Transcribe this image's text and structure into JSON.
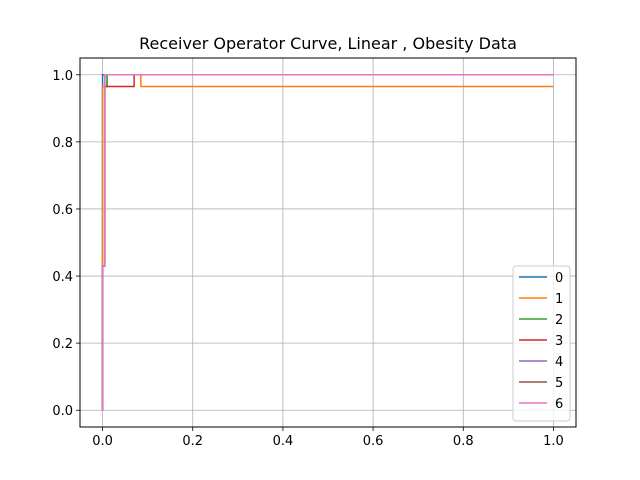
{
  "chart_data": {
    "type": "line",
    "title": "Receiver Operator Curve, Linear , Obesity Data",
    "xlabel": "",
    "ylabel": "",
    "xlim": [
      -0.05,
      1.05
    ],
    "ylim": [
      -0.05,
      1.05
    ],
    "xticks": [
      "0.0",
      "0.2",
      "0.4",
      "0.6",
      "0.8",
      "1.0"
    ],
    "yticks": [
      "0.0",
      "0.2",
      "0.4",
      "0.6",
      "0.8",
      "1.0"
    ],
    "grid": true,
    "legend_position": "lower-right",
    "series": [
      {
        "name": "0",
        "color": "#1f77b4",
        "x": [
          0,
          0,
          0,
          1
        ],
        "y": [
          0,
          0.43,
          1.0,
          1.0
        ]
      },
      {
        "name": "1",
        "color": "#ff7f0e",
        "x": [
          0,
          0,
          0,
          0.01,
          0.01,
          0.085,
          0.085,
          1
        ],
        "y": [
          0,
          0.43,
          0.965,
          0.965,
          1.0,
          1.0,
          0.965,
          0.965
        ]
      },
      {
        "name": "2",
        "color": "#2ca02c",
        "x": [
          0,
          0,
          0.005,
          0.005,
          0.01,
          0.01,
          1
        ],
        "y": [
          0,
          0.43,
          0.43,
          0.965,
          0.965,
          1.0,
          1.0
        ]
      },
      {
        "name": "3",
        "color": "#d62728",
        "x": [
          0,
          0,
          0.005,
          0.005,
          0.07,
          0.07,
          1
        ],
        "y": [
          0,
          0.43,
          0.43,
          0.965,
          0.965,
          1.0,
          1.0
        ]
      },
      {
        "name": "4",
        "color": "#9467bd",
        "x": [
          0,
          0,
          0.005,
          0.005,
          1
        ],
        "y": [
          0,
          0.43,
          0.43,
          1.0,
          1.0
        ]
      },
      {
        "name": "5",
        "color": "#8c564b",
        "x": [
          0,
          0,
          0.005,
          0.005,
          0.03,
          0.03,
          1
        ],
        "y": [
          0,
          0.43,
          0.43,
          1.0,
          1.0,
          1.0,
          1.0
        ]
      },
      {
        "name": "6",
        "color": "#e377c2",
        "x": [
          0,
          0,
          0.005,
          0.005,
          1
        ],
        "y": [
          0,
          0.43,
          0.43,
          1.0,
          1.0
        ]
      }
    ]
  }
}
